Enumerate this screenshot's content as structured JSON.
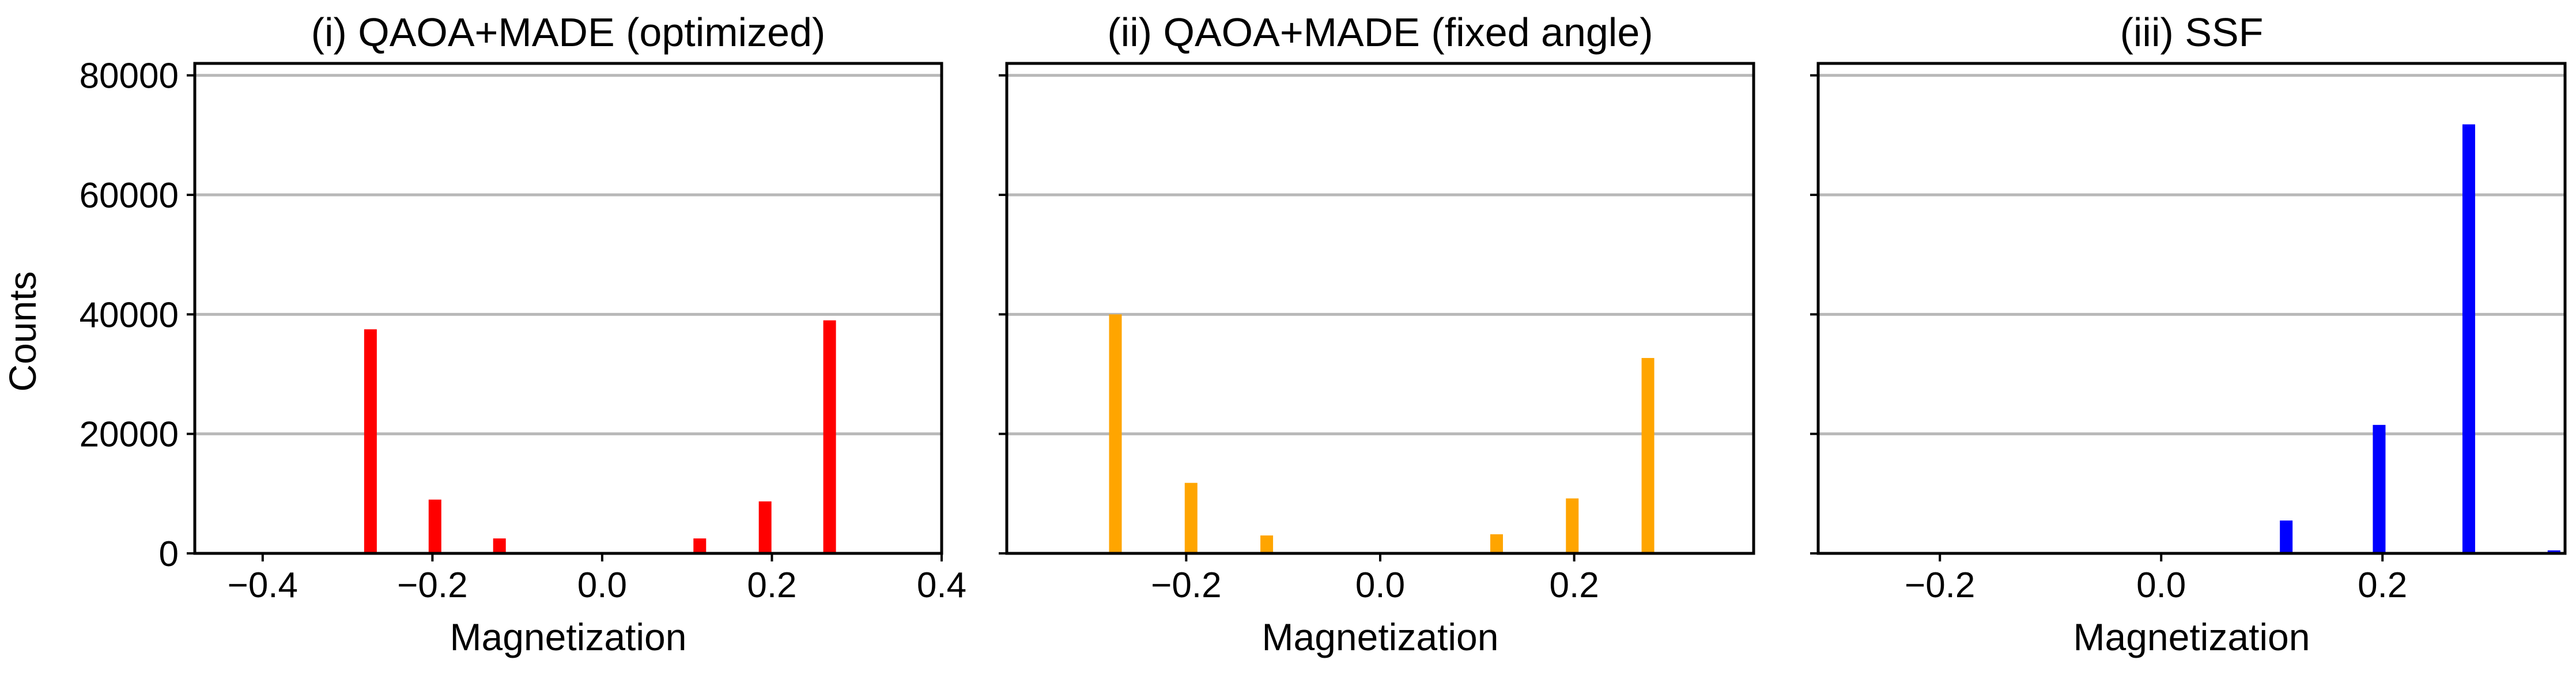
{
  "figure": {
    "ylabel": "Counts",
    "grid_color": "#b8b8b8",
    "axis_color": "#000000"
  },
  "chart_data": [
    {
      "type": "bar",
      "title": "(i) QAOA+MADE (optimized)",
      "xlabel": "Magnetization",
      "ylabel": "Counts",
      "color": "#ff0000",
      "xlim": [
        -0.48,
        0.4
      ],
      "ylim": [
        0,
        82000
      ],
      "xticks": [
        -0.4,
        -0.2,
        0.0,
        0.2,
        0.4
      ],
      "xticklabels": [
        "−0.4",
        "−0.2",
        "0.0",
        "0.2",
        "0.4"
      ],
      "yticks": [
        0,
        20000,
        40000,
        60000,
        80000
      ],
      "yticklabels": [
        "0",
        "20000",
        "40000",
        "60000",
        "80000"
      ],
      "grid": "horizontal",
      "x": [
        -0.273,
        -0.197,
        -0.121,
        0.115,
        0.192,
        0.268
      ],
      "values": [
        37500,
        9000,
        2500,
        2500,
        8700,
        39000
      ]
    },
    {
      "type": "bar",
      "title": "(ii) QAOA+MADE (fixed angle)",
      "xlabel": "Magnetization",
      "ylabel": "",
      "color": "#ffa500",
      "xlim": [
        -0.385,
        0.385
      ],
      "ylim": [
        0,
        82000
      ],
      "xticks": [
        -0.2,
        0.0,
        0.2
      ],
      "xticklabels": [
        "−0.2",
        "0.0",
        "0.2"
      ],
      "yticks": [
        0,
        20000,
        40000,
        60000,
        80000
      ],
      "yticklabels": [],
      "grid": "horizontal",
      "x": [
        -0.273,
        -0.195,
        -0.117,
        0.12,
        0.198,
        0.276
      ],
      "values": [
        40000,
        11800,
        3000,
        3200,
        9200,
        32700
      ]
    },
    {
      "type": "bar",
      "title": "(iii) SSF",
      "xlabel": "Magnetization",
      "ylabel": "",
      "color": "#0000ff",
      "xlim": [
        -0.31,
        0.365
      ],
      "ylim": [
        0,
        82000
      ],
      "xticks": [
        -0.2,
        0.0,
        0.2
      ],
      "xticklabels": [
        "−0.2",
        "0.0",
        "0.2"
      ],
      "yticks": [
        0,
        20000,
        40000,
        60000,
        80000
      ],
      "yticklabels": [],
      "grid": "horizontal",
      "x": [
        0.113,
        0.197,
        0.278,
        0.355
      ],
      "values": [
        5500,
        21500,
        71800,
        500
      ]
    }
  ]
}
